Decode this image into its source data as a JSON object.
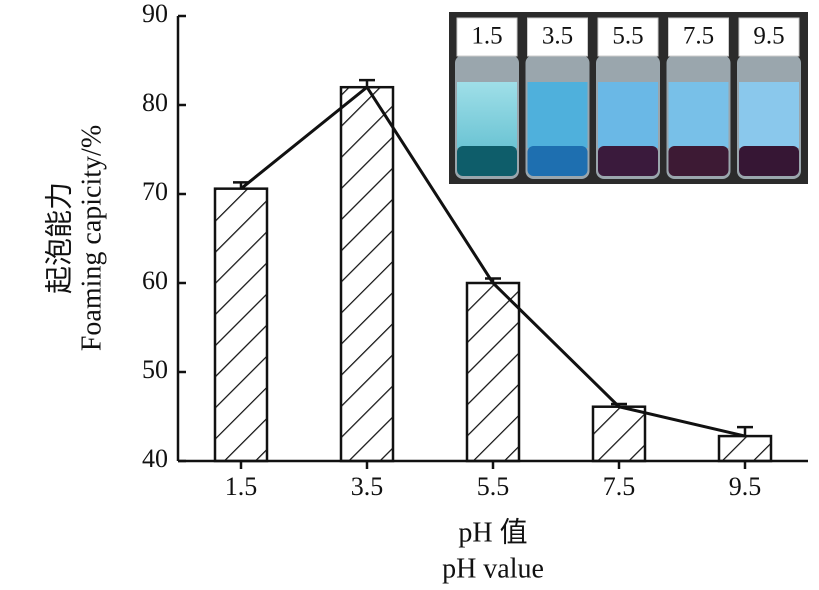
{
  "chart_data": {
    "type": "bar",
    "y_label_zh": "起泡能力",
    "y_label": "Foaming capicity/%",
    "x_label_zh": "pH 值",
    "x_label": "pH value",
    "categories": [
      "1.5",
      "3.5",
      "5.5",
      "7.5",
      "9.5"
    ],
    "values": [
      70.6,
      82.0,
      60.0,
      46.1,
      42.8
    ],
    "errors": [
      0.7,
      0.8,
      0.5,
      0.3,
      1.0
    ],
    "color": "#111111",
    "line": true,
    "ylim": [
      40,
      90
    ],
    "yticks": [
      40,
      50,
      60,
      70,
      80,
      90
    ],
    "inset_labels": [
      "1.5",
      "3.5",
      "5.5",
      "7.5",
      "9.5"
    ]
  }
}
